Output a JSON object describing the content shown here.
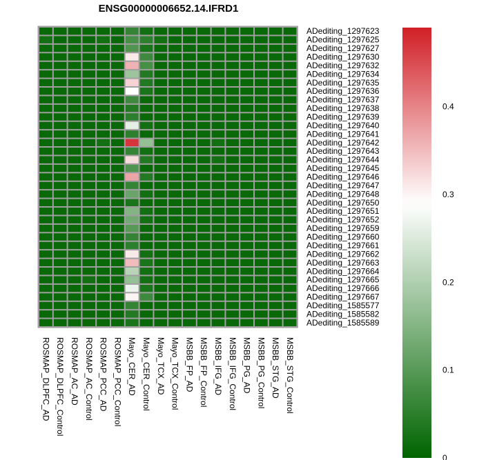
{
  "chart_data": {
    "type": "heatmap",
    "title": "ENSG00000006652.14.IFRD1",
    "columns": [
      "ROSMAP_DLPFC_AD",
      "ROSMAP_DLPFC_Control",
      "ROSMAP_AC_AD",
      "ROSMAP_AC_Control",
      "ROSMAP_PCC_AD",
      "ROSMAP_PCC_Control",
      "Mayo_CER_AD",
      "Mayo_CER_Control",
      "Mayo_TCX_AD",
      "Mayo_TCX_Control",
      "MSBB_FP_AD",
      "MSBB_FP_Control",
      "MSBB_IFG_AD",
      "MSBB_IFG_Control",
      "MSBB_PG_AD",
      "MSBB_PG_Control",
      "MSBB_STG_AD",
      "MSBB_STG_Control"
    ],
    "rows": [
      "ADediting_1297623",
      "ADediting_1297625",
      "ADediting_1297627",
      "ADediting_1297630",
      "ADediting_1297632",
      "ADediting_1297634",
      "ADediting_1297635",
      "ADediting_1297636",
      "ADediting_1297637",
      "ADediting_1297638",
      "ADediting_1297639",
      "ADediting_1297640",
      "ADediting_1297641",
      "ADediting_1297642",
      "ADediting_1297643",
      "ADediting_1297644",
      "ADediting_1297645",
      "ADediting_1297646",
      "ADediting_1297647",
      "ADediting_1297648",
      "ADediting_1297650",
      "ADediting_1297651",
      "ADediting_1297652",
      "ADediting_1297659",
      "ADediting_1297660",
      "ADediting_1297661",
      "ADediting_1297662",
      "ADediting_1297663",
      "ADediting_1297664",
      "ADediting_1297665",
      "ADediting_1297666",
      "ADediting_1297667",
      "ADediting_1585577",
      "ADediting_1585582",
      "ADediting_1585589"
    ],
    "values": [
      [
        0.01,
        0.01,
        0.01,
        0.01,
        0.01,
        0.01,
        0.06,
        0.02,
        0.01,
        0.01,
        0.01,
        0.01,
        0.01,
        0.01,
        0.01,
        0.01,
        0.01,
        0.01
      ],
      [
        0.02,
        0.01,
        0.01,
        0.01,
        0.02,
        0.01,
        0.08,
        0.05,
        0.02,
        0.01,
        0.01,
        0.01,
        0.01,
        0.01,
        0.01,
        0.01,
        0.01,
        0.01
      ],
      [
        0.01,
        0.01,
        0.01,
        0.01,
        0.01,
        0.01,
        0.09,
        0.03,
        0.01,
        0.01,
        0.01,
        0.01,
        0.01,
        0.01,
        0.01,
        0.01,
        0.01,
        0.01
      ],
      [
        0.01,
        0.01,
        0.01,
        0.01,
        0.01,
        0.01,
        0.31,
        0.07,
        0.01,
        0.01,
        0.01,
        0.01,
        0.01,
        0.01,
        0.01,
        0.01,
        0.01,
        0.01
      ],
      [
        0.01,
        0.01,
        0.01,
        0.01,
        0.01,
        0.01,
        0.36,
        0.08,
        0.01,
        0.01,
        0.01,
        0.01,
        0.01,
        0.01,
        0.01,
        0.01,
        0.01,
        0.01
      ],
      [
        0.01,
        0.01,
        0.01,
        0.01,
        0.01,
        0.01,
        0.18,
        0.04,
        0.01,
        0.01,
        0.01,
        0.01,
        0.01,
        0.01,
        0.01,
        0.01,
        0.01,
        0.01
      ],
      [
        0.01,
        0.01,
        0.01,
        0.01,
        0.01,
        0.01,
        0.33,
        0.04,
        0.01,
        0.01,
        0.01,
        0.01,
        0.01,
        0.01,
        0.01,
        0.01,
        0.01,
        0.01
      ],
      [
        0.01,
        0.01,
        0.01,
        0.01,
        0.01,
        0.01,
        0.29,
        0.03,
        0.01,
        0.01,
        0.01,
        0.01,
        0.01,
        0.01,
        0.01,
        0.01,
        0.01,
        0.01
      ],
      [
        0.01,
        0.01,
        0.01,
        0.01,
        0.01,
        0.01,
        0.07,
        0.01,
        0.01,
        0.01,
        0.01,
        0.01,
        0.01,
        0.01,
        0.01,
        0.01,
        0.01,
        0.01
      ],
      [
        0.01,
        0.01,
        0.01,
        0.01,
        0.01,
        0.01,
        0.04,
        0.01,
        0.01,
        0.01,
        0.01,
        0.01,
        0.01,
        0.01,
        0.01,
        0.01,
        0.01,
        0.01
      ],
      [
        0.01,
        0.01,
        0.01,
        0.01,
        0.01,
        0.01,
        0.05,
        0.01,
        0.01,
        0.01,
        0.01,
        0.01,
        0.01,
        0.01,
        0.01,
        0.01,
        0.01,
        0.01
      ],
      [
        0.01,
        0.01,
        0.01,
        0.01,
        0.01,
        0.01,
        0.26,
        0.02,
        0.01,
        0.01,
        0.01,
        0.01,
        0.01,
        0.01,
        0.01,
        0.01,
        0.01,
        0.01
      ],
      [
        0.01,
        0.01,
        0.01,
        0.01,
        0.01,
        0.01,
        0.05,
        0.01,
        0.01,
        0.01,
        0.01,
        0.01,
        0.01,
        0.01,
        0.01,
        0.01,
        0.01,
        0.01
      ],
      [
        0.01,
        0.01,
        0.01,
        0.01,
        0.02,
        0.01,
        0.47,
        0.17,
        0.01,
        0.01,
        0.01,
        0.01,
        0.02,
        0.01,
        0.01,
        0.01,
        0.01,
        0.01
      ],
      [
        0.01,
        0.01,
        0.01,
        0.01,
        0.01,
        0.01,
        0.06,
        0.02,
        0.01,
        0.01,
        0.01,
        0.01,
        0.01,
        0.01,
        0.01,
        0.01,
        0.01,
        0.01
      ],
      [
        0.01,
        0.01,
        0.01,
        0.01,
        0.01,
        0.01,
        0.32,
        0.04,
        0.01,
        0.01,
        0.01,
        0.01,
        0.02,
        0.01,
        0.01,
        0.01,
        0.01,
        0.01
      ],
      [
        0.01,
        0.01,
        0.01,
        0.01,
        0.01,
        0.01,
        0.09,
        0.01,
        0.01,
        0.01,
        0.01,
        0.01,
        0.01,
        0.01,
        0.01,
        0.01,
        0.01,
        0.01
      ],
      [
        0.01,
        0.01,
        0.01,
        0.01,
        0.01,
        0.01,
        0.37,
        0.04,
        0.01,
        0.01,
        0.01,
        0.01,
        0.01,
        0.01,
        0.01,
        0.01,
        0.01,
        0.01
      ],
      [
        0.01,
        0.01,
        0.01,
        0.01,
        0.01,
        0.01,
        0.06,
        0.01,
        0.01,
        0.01,
        0.01,
        0.01,
        0.01,
        0.01,
        0.01,
        0.01,
        0.01,
        0.01
      ],
      [
        0.01,
        0.01,
        0.01,
        0.01,
        0.01,
        0.01,
        0.12,
        0.02,
        0.01,
        0.01,
        0.01,
        0.01,
        0.01,
        0.01,
        0.01,
        0.01,
        0.01,
        0.01
      ],
      [
        0.01,
        0.01,
        0.01,
        0.01,
        0.01,
        0.01,
        0.03,
        0.01,
        0.01,
        0.01,
        0.01,
        0.01,
        0.01,
        0.01,
        0.01,
        0.01,
        0.01,
        0.01
      ],
      [
        0.01,
        0.01,
        0.01,
        0.01,
        0.01,
        0.01,
        0.15,
        0.02,
        0.01,
        0.01,
        0.01,
        0.01,
        0.01,
        0.01,
        0.01,
        0.01,
        0.01,
        0.01
      ],
      [
        0.01,
        0.01,
        0.01,
        0.01,
        0.01,
        0.01,
        0.13,
        0.02,
        0.01,
        0.01,
        0.01,
        0.01,
        0.01,
        0.01,
        0.01,
        0.01,
        0.01,
        0.01
      ],
      [
        0.01,
        0.01,
        0.01,
        0.01,
        0.01,
        0.01,
        0.1,
        0.01,
        0.01,
        0.01,
        0.01,
        0.01,
        0.01,
        0.01,
        0.01,
        0.01,
        0.01,
        0.01
      ],
      [
        0.01,
        0.01,
        0.01,
        0.01,
        0.01,
        0.01,
        0.06,
        0.01,
        0.01,
        0.01,
        0.01,
        0.01,
        0.01,
        0.01,
        0.01,
        0.01,
        0.01,
        0.01
      ],
      [
        0.01,
        0.01,
        0.01,
        0.01,
        0.01,
        0.01,
        0.05,
        0.01,
        0.01,
        0.01,
        0.01,
        0.01,
        0.01,
        0.01,
        0.01,
        0.01,
        0.01,
        0.01
      ],
      [
        0.01,
        0.01,
        0.01,
        0.01,
        0.01,
        0.01,
        0.31,
        0.02,
        0.01,
        0.01,
        0.01,
        0.01,
        0.01,
        0.01,
        0.01,
        0.01,
        0.01,
        0.01
      ],
      [
        0.01,
        0.01,
        0.01,
        0.01,
        0.01,
        0.01,
        0.35,
        0.03,
        0.01,
        0.01,
        0.01,
        0.01,
        0.01,
        0.01,
        0.01,
        0.01,
        0.01,
        0.01
      ],
      [
        0.01,
        0.01,
        0.01,
        0.01,
        0.01,
        0.01,
        0.21,
        0.02,
        0.01,
        0.01,
        0.01,
        0.01,
        0.01,
        0.01,
        0.01,
        0.01,
        0.01,
        0.01
      ],
      [
        0.01,
        0.01,
        0.01,
        0.02,
        0.01,
        0.01,
        0.17,
        0.02,
        0.01,
        0.01,
        0.01,
        0.01,
        0.01,
        0.01,
        0.01,
        0.01,
        0.01,
        0.01
      ],
      [
        0.01,
        0.01,
        0.01,
        0.01,
        0.01,
        0.01,
        0.27,
        0.03,
        0.01,
        0.01,
        0.01,
        0.01,
        0.01,
        0.01,
        0.01,
        0.01,
        0.01,
        0.01
      ],
      [
        0.01,
        0.01,
        0.01,
        0.01,
        0.01,
        0.01,
        0.3,
        0.07,
        0.01,
        0.01,
        0.01,
        0.01,
        0.01,
        0.01,
        0.01,
        0.01,
        0.01,
        0.01
      ],
      [
        0.01,
        0.01,
        0.01,
        0.01,
        0.01,
        0.01,
        0.06,
        0.01,
        0.01,
        0.01,
        0.01,
        0.01,
        0.01,
        0.01,
        0.01,
        0.01,
        0.01,
        0.01
      ],
      [
        0.01,
        0.01,
        0.01,
        0.01,
        0.01,
        0.01,
        0.04,
        0.01,
        0.01,
        0.01,
        0.01,
        0.01,
        0.01,
        0.01,
        0.01,
        0.01,
        0.01,
        0.01
      ],
      [
        0.01,
        0.01,
        0.01,
        0.01,
        0.01,
        0.01,
        0.03,
        0.01,
        0.01,
        0.01,
        0.01,
        0.01,
        0.01,
        0.01,
        0.01,
        0.01,
        0.01,
        0.01
      ]
    ],
    "colorbar": {
      "range": [
        0,
        0.49
      ],
      "ticks": [
        0,
        0.1,
        0.2,
        0.3,
        0.4
      ],
      "tick_labels": [
        "0",
        "0.1",
        "0.2",
        "0.3",
        "0.4"
      ],
      "colors": {
        "low": "#006400",
        "mid": "#ffffff",
        "high": "#d11f26"
      },
      "mid_value": 0.29
    },
    "grid_color": "#a0a0a0"
  }
}
